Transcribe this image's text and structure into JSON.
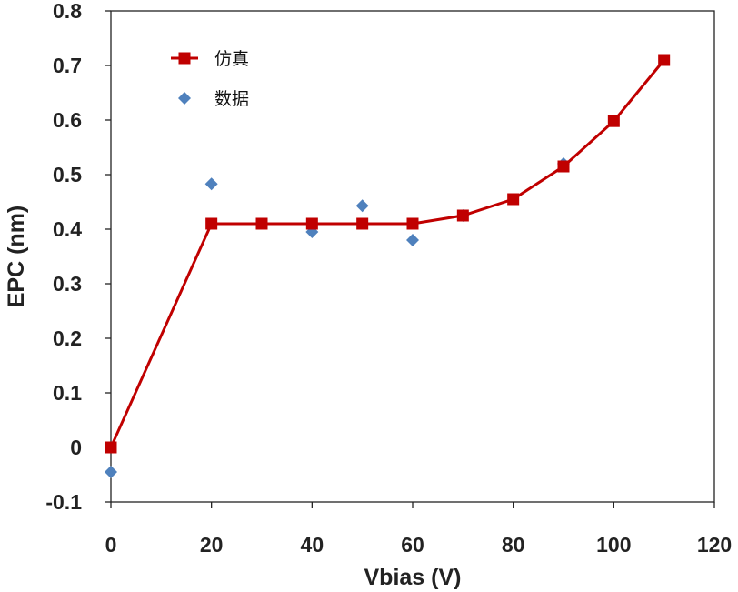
{
  "chart_data": {
    "type": "line",
    "title": "",
    "xlabel": "Vbias (V)",
    "ylabel": "EPC (nm)",
    "xlim": [
      0,
      120
    ],
    "ylim": [
      -0.1,
      0.8
    ],
    "xticks": [
      0,
      20,
      40,
      60,
      80,
      100,
      120
    ],
    "yticks": [
      -0.1,
      0,
      0.1,
      0.2,
      0.3,
      0.4,
      0.5,
      0.6,
      0.7,
      0.8
    ],
    "ytick_labels": [
      "-0.1",
      "0",
      "0.1",
      "0.2",
      "0.3",
      "0.4",
      "0.5",
      "0.6",
      "0.7",
      "0.8"
    ],
    "grid": false,
    "legend_position": "top-left",
    "series": [
      {
        "name": "仿真",
        "style": "line-square",
        "color": "#c00000",
        "x": [
          0,
          20,
          30,
          40,
          50,
          60,
          70,
          80,
          90,
          100,
          110
        ],
        "y": [
          0.0,
          0.41,
          0.41,
          0.41,
          0.41,
          0.41,
          0.425,
          0.455,
          0.515,
          0.598,
          0.71
        ]
      },
      {
        "name": "数据",
        "style": "scatter-diamond",
        "color": "#4f81bd",
        "x": [
          0,
          20,
          40,
          50,
          60,
          70,
          90
        ],
        "y": [
          -0.045,
          0.483,
          0.395,
          0.443,
          0.38,
          0.425,
          0.52
        ]
      }
    ]
  }
}
